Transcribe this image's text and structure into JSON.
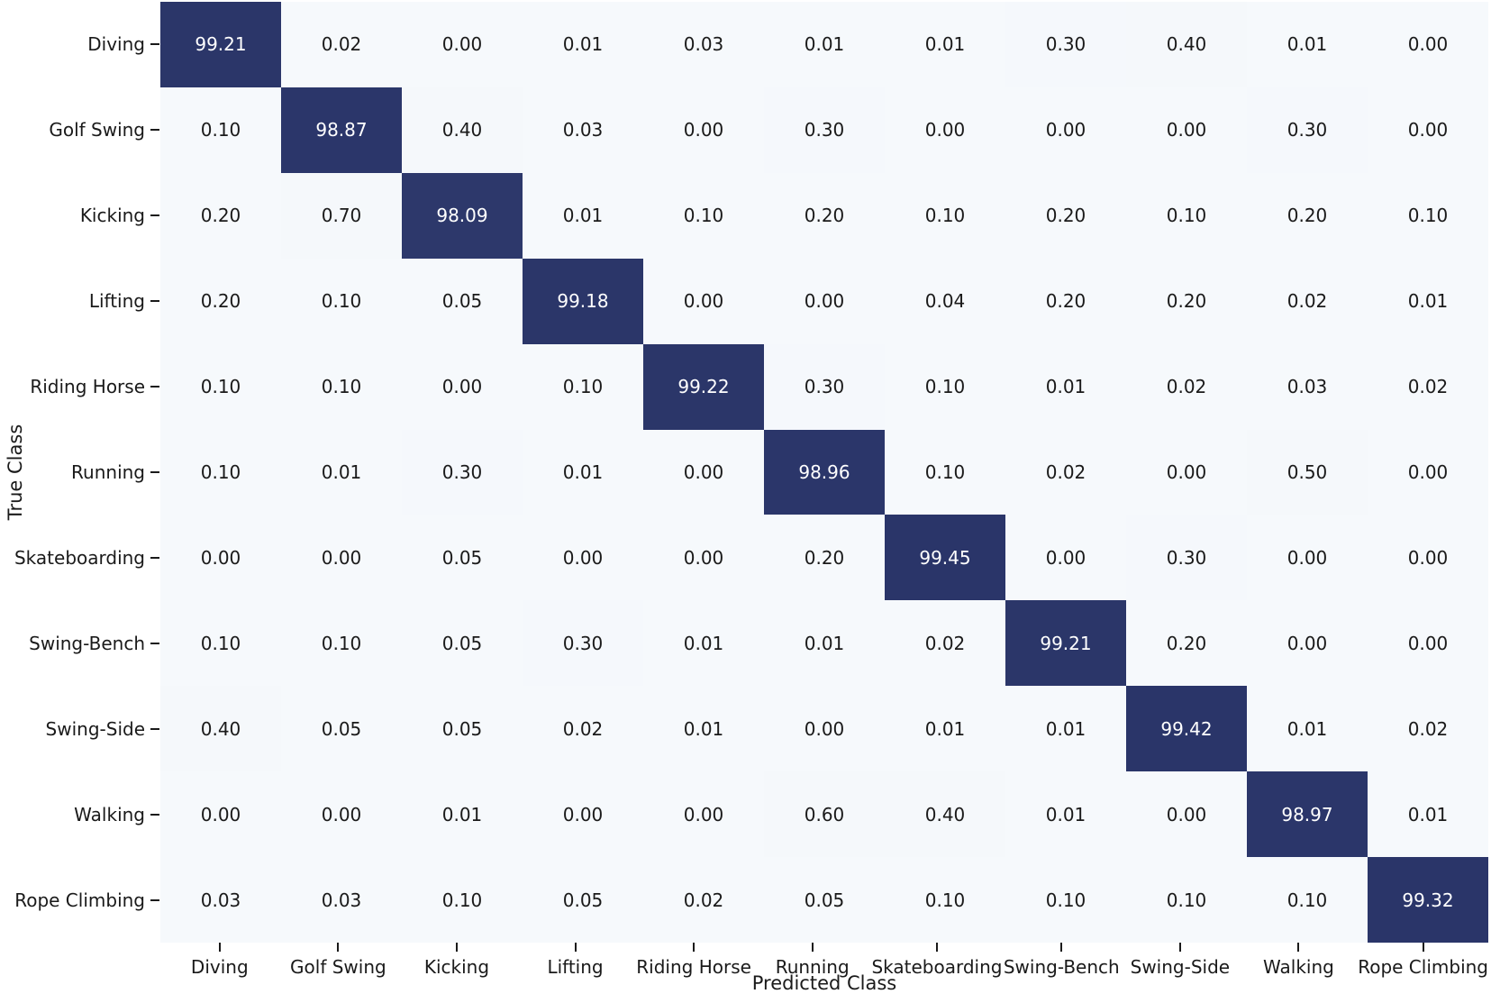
{
  "chart_data": {
    "type": "heatmap",
    "xlabel": "Predicted Class",
    "ylabel": "True Class",
    "categories": [
      "Diving",
      "Golf Swing",
      "Kicking",
      "Lifting",
      "Riding Horse",
      "Running",
      "Skateboarding",
      "Swing-Bench",
      "Swing-Side",
      "Walking",
      "Rope Climbing"
    ],
    "value_range": [
      0,
      100
    ],
    "value_format_decimals": 2,
    "grid": "off",
    "legend": "none",
    "colormap": {
      "low": "#f6f9fc",
      "high": "#293468"
    },
    "text_on_dark": "#ffffff",
    "text_on_light": "#1a1a1a",
    "matrix": [
      [
        99.21,
        0.02,
        0.0,
        0.01,
        0.03,
        0.01,
        0.01,
        0.3,
        0.4,
        0.01,
        0.0
      ],
      [
        0.1,
        98.87,
        0.4,
        0.03,
        0.0,
        0.3,
        0.0,
        0.0,
        0.0,
        0.3,
        0.0
      ],
      [
        0.2,
        0.7,
        98.09,
        0.01,
        0.1,
        0.2,
        0.1,
        0.2,
        0.1,
        0.2,
        0.1
      ],
      [
        0.2,
        0.1,
        0.05,
        99.18,
        0.0,
        0.0,
        0.04,
        0.2,
        0.2,
        0.02,
        0.01
      ],
      [
        0.1,
        0.1,
        0.0,
        0.1,
        99.22,
        0.3,
        0.1,
        0.01,
        0.02,
        0.03,
        0.02
      ],
      [
        0.1,
        0.01,
        0.3,
        0.01,
        0.0,
        98.96,
        0.1,
        0.02,
        0.0,
        0.5,
        0.0
      ],
      [
        0.0,
        0.0,
        0.05,
        0.0,
        0.0,
        0.2,
        99.45,
        0.0,
        0.3,
        0.0,
        0.0
      ],
      [
        0.1,
        0.1,
        0.05,
        0.3,
        0.01,
        0.01,
        0.02,
        99.21,
        0.2,
        0.0,
        0.0
      ],
      [
        0.4,
        0.05,
        0.05,
        0.02,
        0.01,
        0.0,
        0.01,
        0.01,
        99.42,
        0.01,
        0.02
      ],
      [
        0.0,
        0.0,
        0.01,
        0.0,
        0.0,
        0.6,
        0.4,
        0.01,
        0.0,
        98.97,
        0.01
      ],
      [
        0.03,
        0.03,
        0.1,
        0.05,
        0.02,
        0.05,
        0.1,
        0.1,
        0.1,
        0.1,
        99.32
      ]
    ]
  }
}
